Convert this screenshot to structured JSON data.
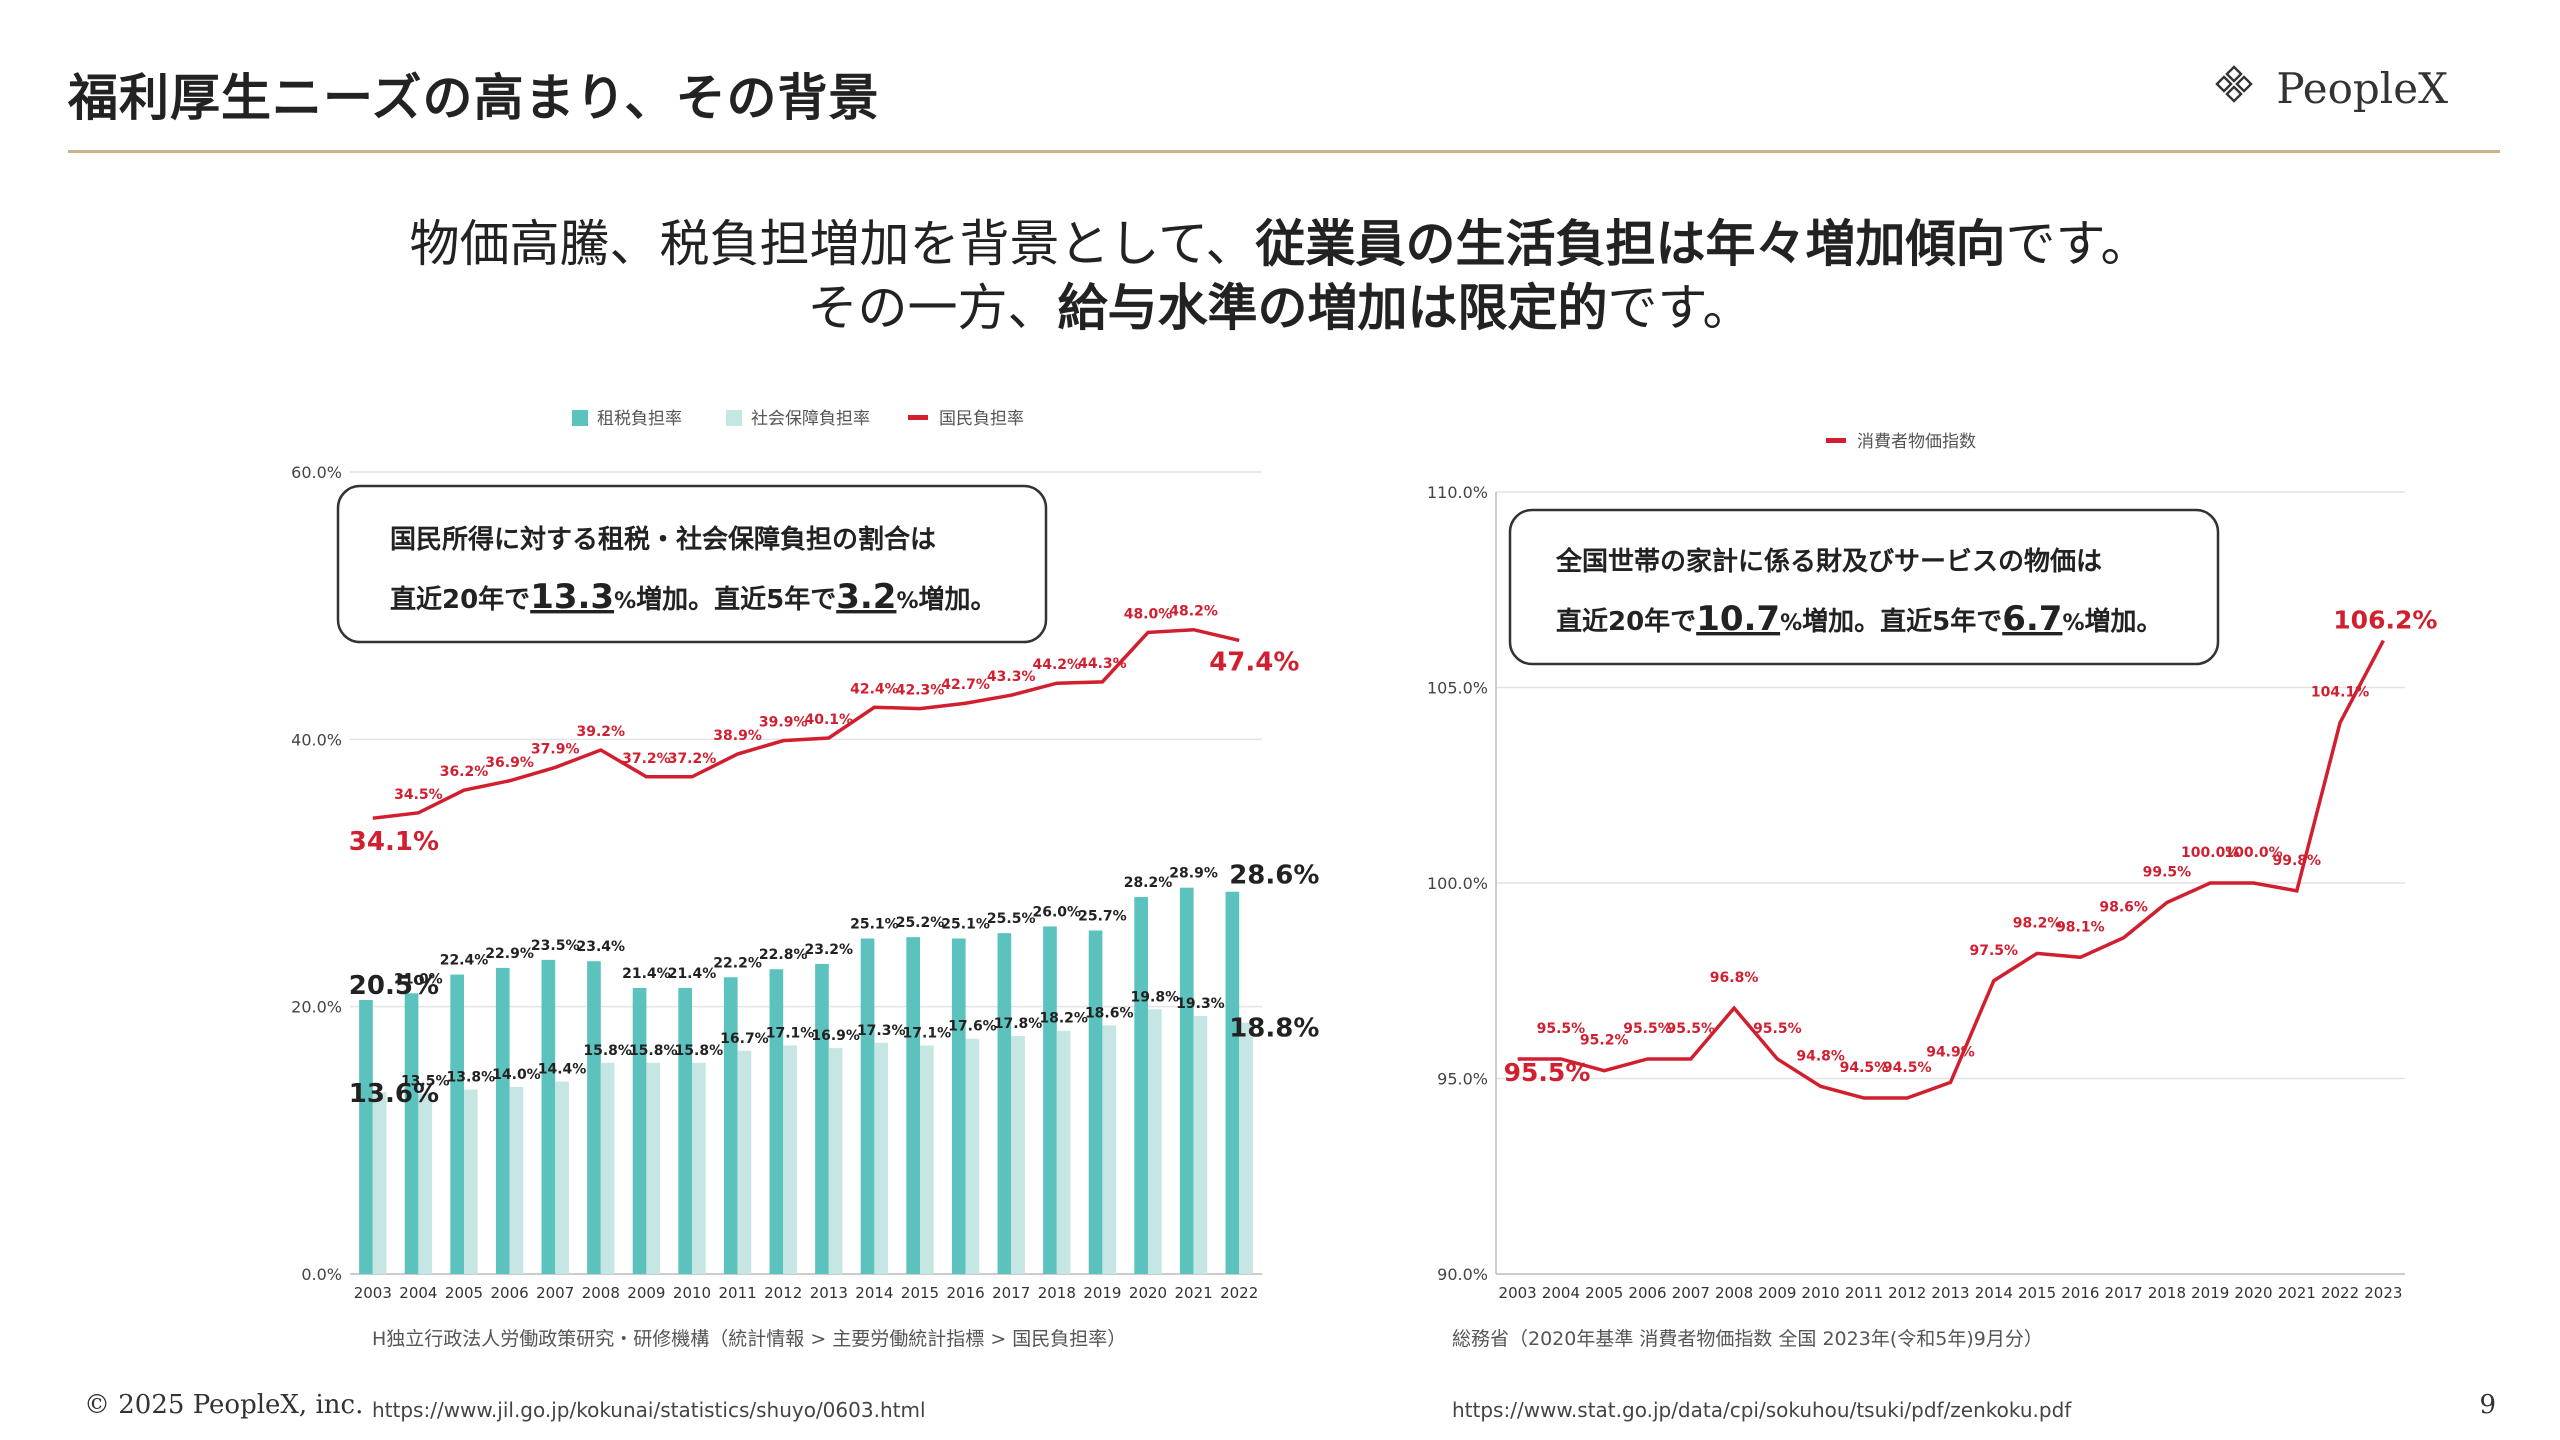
{
  "header": {
    "title": "福利厚生ニーズの高まり、その背景",
    "brand": "PeopleX"
  },
  "headline": {
    "l1a": "物価高騰、税負担増加を背景として、",
    "l1b": "従業員の生活負担は年々増加傾向",
    "l1c": "です。",
    "l2a": "その一方、",
    "l2b": "給与水準の増加は限定的",
    "l2c": "です。"
  },
  "footer": {
    "copyright": "© 2025 PeopleX, inc.",
    "page": "9",
    "left_url": "https://www.jil.go.jp/kokunai/statistics/shuyo/0603.html",
    "right_url": "https://www.stat.go.jp/data/cpi/sokuhou/tsuki/pdf/zenkoku.pdf"
  },
  "colors": {
    "teal": "#5cc2be",
    "light": "#c6e6e3",
    "red": "#d21f2f",
    "grid": "#e4e4e4",
    "gold": "#c9b48c"
  },
  "chart_data": [
    {
      "type": "bar",
      "source": "H独立行政法人労働政策研究・研修機構（統計情報 > 主要労働統計指標 > 国民負担率）",
      "legend": [
        "租税負担率",
        "社会保障負担率",
        "国民負担率"
      ],
      "categories": [
        "2003",
        "2004",
        "2005",
        "2006",
        "2007",
        "2008",
        "2009",
        "2010",
        "2011",
        "2012",
        "2013",
        "2014",
        "2015",
        "2016",
        "2017",
        "2018",
        "2019",
        "2020",
        "2021",
        "2022"
      ],
      "series": [
        {
          "name": "租税負担率",
          "type": "bar",
          "values": [
            20.5,
            21.0,
            22.4,
            22.9,
            23.5,
            23.4,
            21.4,
            21.4,
            22.2,
            22.8,
            23.2,
            25.1,
            25.2,
            25.1,
            25.5,
            26.0,
            25.7,
            28.2,
            28.9,
            28.6
          ]
        },
        {
          "name": "社会保障負担率",
          "type": "bar",
          "values": [
            13.6,
            13.5,
            13.8,
            14.0,
            14.4,
            15.8,
            15.8,
            15.8,
            16.7,
            17.1,
            16.9,
            17.3,
            17.1,
            17.6,
            17.8,
            18.2,
            18.6,
            19.8,
            19.3,
            18.8
          ]
        },
        {
          "name": "国民負担率",
          "type": "line",
          "values": [
            34.1,
            34.5,
            36.2,
            36.9,
            37.9,
            39.2,
            37.2,
            37.2,
            38.9,
            39.9,
            40.1,
            42.4,
            42.3,
            42.7,
            43.3,
            44.2,
            44.3,
            48.0,
            48.2,
            47.4
          ]
        }
      ],
      "yticks": [
        "60.0%",
        "40.0%",
        "20.0%",
        "0.0%"
      ],
      "ylim": [
        0,
        60
      ],
      "annotation": {
        "line1": "国民所得に対する租税・社会保障負担の割合は",
        "pre": "直近20年で",
        "v1": "13.3",
        "pct1": "%",
        "mid": "増加。直近5年で",
        "v2": "3.2",
        "pct2": "%",
        "post": "増加。"
      }
    },
    {
      "type": "line",
      "source": "総務省（2020年基準 消費者物価指数 全国 2023年(令和5年)9月分）",
      "legend": [
        "消費者物価指数"
      ],
      "categories": [
        "2003",
        "2004",
        "2005",
        "2006",
        "2007",
        "2008",
        "2009",
        "2010",
        "2011",
        "2012",
        "2013",
        "2014",
        "2015",
        "2016",
        "2017",
        "2018",
        "2019",
        "2020",
        "2021",
        "2022",
        "2023"
      ],
      "series": [
        {
          "name": "消費者物価指数",
          "values": [
            95.5,
            95.5,
            95.2,
            95.5,
            95.5,
            96.8,
            95.5,
            94.8,
            94.5,
            94.5,
            94.9,
            97.5,
            98.2,
            98.1,
            98.6,
            99.5,
            100.0,
            100.0,
            99.8,
            104.1,
            106.2
          ]
        }
      ],
      "yticks": [
        "110.0%",
        "105.0%",
        "100.0%",
        "95.0%",
        "90.0%"
      ],
      "ylim": [
        90,
        110
      ],
      "annotation": {
        "line1": "全国世帯の家計に係る財及びサービスの物価は",
        "pre": "直近20年で",
        "v1": "10.7",
        "pct1": "%",
        "mid": "増加。直近5年で",
        "v2": "6.7",
        "pct2": "%",
        "post": "増加。"
      }
    }
  ]
}
